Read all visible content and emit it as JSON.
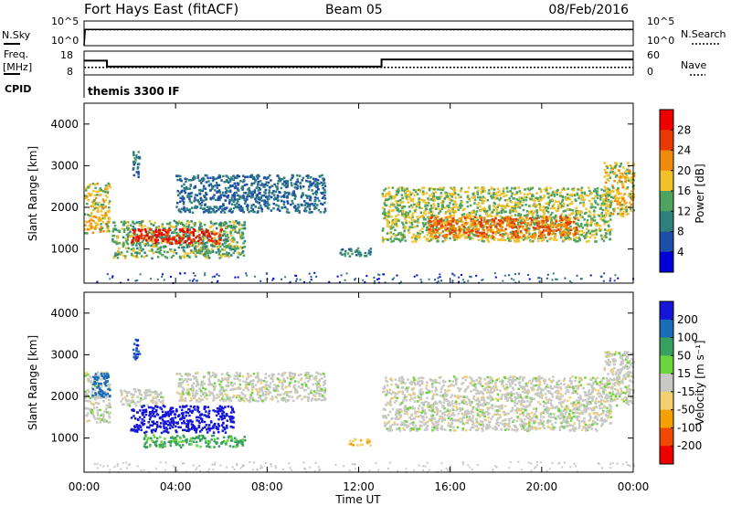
{
  "header": {
    "station": "Fort Hays East (fitACF)",
    "beam": "Beam 05",
    "date": "08/Feb/2016"
  },
  "top_panels": {
    "nsky_label": "N.Sky",
    "nsky_ticks": [
      "10^5",
      "10^0"
    ],
    "nsearch_label": "N.Search",
    "nsearch_ticks": [
      "10^5",
      "10^0"
    ],
    "freq_label": "Freq.",
    "freq_unit": "[MHz]",
    "freq_ticks": [
      "18",
      "8"
    ],
    "nave_label": "Nave",
    "nave_ticks": [
      "60",
      "0"
    ],
    "cpid_label": "CPID",
    "cpid_value": "themis 3300 IF"
  },
  "chart_data": [
    {
      "type": "line",
      "name": "noise-panel",
      "x": [
        0,
        0.05,
        24
      ],
      "series": [
        {
          "name": "N.Sky",
          "values": [
            1,
            2000,
            2000
          ]
        },
        {
          "name": "N.Search",
          "values": [
            1,
            1500,
            1500
          ]
        }
      ],
      "ylim": [
        1,
        100000
      ],
      "log_y": true
    },
    {
      "type": "line",
      "name": "freq-nave-panel",
      "x": [
        0,
        1.0,
        1.0,
        13.0,
        13.0,
        24.0
      ],
      "series": [
        {
          "name": "Freq.",
          "values": [
            14,
            14,
            11.5,
            11.5,
            14.5,
            14.5
          ]
        },
        {
          "name": "Nave",
          "values": [
            19,
            19,
            19,
            19,
            19,
            19
          ]
        }
      ],
      "ylim_freq": [
        8,
        18
      ],
      "ylim_nave": [
        0,
        60
      ]
    },
    {
      "type": "heatmap",
      "name": "power-panel",
      "ylabel": "Slant Range [km]",
      "xlim": [
        0,
        24
      ],
      "ylim": [
        180,
        4500
      ],
      "yticks": [
        "4000",
        "3000",
        "2000",
        "1000"
      ],
      "colorbar": {
        "label": "Power [dB]",
        "ticks": [
          "28",
          "24",
          "20",
          "16",
          "12",
          "8",
          "4"
        ],
        "colors": [
          "#0000d8",
          "#1e4fa8",
          "#2f7f7f",
          "#4ea35e",
          "#f2c12a",
          "#f08a0c",
          "#e83a00",
          "#ee0000"
        ]
      },
      "regions": [
        {
          "t0": 0.0,
          "t1": 1.1,
          "r0": 1400,
          "r1": 2600,
          "level": 18
        },
        {
          "t0": 1.2,
          "t1": 7.0,
          "r0": 800,
          "r1": 1700,
          "level": 14
        },
        {
          "t0": 2.0,
          "t1": 6.0,
          "r0": 1150,
          "r1": 1500,
          "level": 28
        },
        {
          "t0": 2.1,
          "t1": 2.4,
          "r0": 2700,
          "r1": 3400,
          "level": 10
        },
        {
          "t0": 4.0,
          "t1": 10.5,
          "r0": 1900,
          "r1": 2800,
          "level": 8
        },
        {
          "t0": 11.0,
          "t1": 12.5,
          "r0": 850,
          "r1": 1050,
          "level": 10
        },
        {
          "t0": 13.0,
          "t1": 23.0,
          "r0": 1200,
          "r1": 2500,
          "level": 16
        },
        {
          "t0": 15.0,
          "t1": 21.5,
          "r0": 1300,
          "r1": 1800,
          "level": 24
        },
        {
          "t0": 22.7,
          "t1": 24.0,
          "r0": 1800,
          "r1": 3100,
          "level": 18
        }
      ]
    },
    {
      "type": "heatmap",
      "name": "velocity-panel",
      "ylabel": "Slant Range [km]",
      "xlabel": "Time UT",
      "xlim": [
        0,
        24
      ],
      "ylim": [
        180,
        4500
      ],
      "yticks": [
        "4000",
        "3000",
        "2000",
        "1000"
      ],
      "xticks": [
        "00:00",
        "04:00",
        "08:00",
        "12:00",
        "16:00",
        "20:00",
        "00:00"
      ],
      "colorbar": {
        "label": "Velocity [m s⁻¹]",
        "ticks": [
          "200",
          "100",
          "50",
          "15",
          "-15",
          "-50",
          "-100",
          "-200"
        ],
        "colors": [
          "#ee0000",
          "#f04800",
          "#f5a000",
          "#f2d070",
          "#c8c8c4",
          "#6ad43a",
          "#37a05e",
          "#1a6cb8",
          "#1616d8"
        ]
      },
      "regions": [
        {
          "t0": 0.0,
          "t1": 1.1,
          "r0": 1400,
          "r1": 2600,
          "v": 0
        },
        {
          "t0": 0.3,
          "t1": 1.1,
          "r0": 2000,
          "r1": 2600,
          "v": 180
        },
        {
          "t0": 1.5,
          "t1": 3.5,
          "r0": 1800,
          "r1": 2200,
          "v": 0
        },
        {
          "t0": 2.0,
          "t1": 6.5,
          "r0": 1150,
          "r1": 1800,
          "v": 220
        },
        {
          "t0": 2.5,
          "t1": 7.0,
          "r0": 800,
          "r1": 1100,
          "v": 60
        },
        {
          "t0": 2.1,
          "t1": 2.4,
          "r0": 2900,
          "r1": 3400,
          "v": 200
        },
        {
          "t0": 4.0,
          "t1": 10.5,
          "r0": 1900,
          "r1": 2600,
          "v": 0
        },
        {
          "t0": 11.5,
          "t1": 12.5,
          "r0": 850,
          "r1": 1000,
          "v": -40
        },
        {
          "t0": 13.0,
          "t1": 23.0,
          "r0": 1200,
          "r1": 2500,
          "v": 0
        },
        {
          "t0": 22.7,
          "t1": 24.0,
          "r0": 1800,
          "r1": 3100,
          "v": 0
        }
      ]
    }
  ]
}
